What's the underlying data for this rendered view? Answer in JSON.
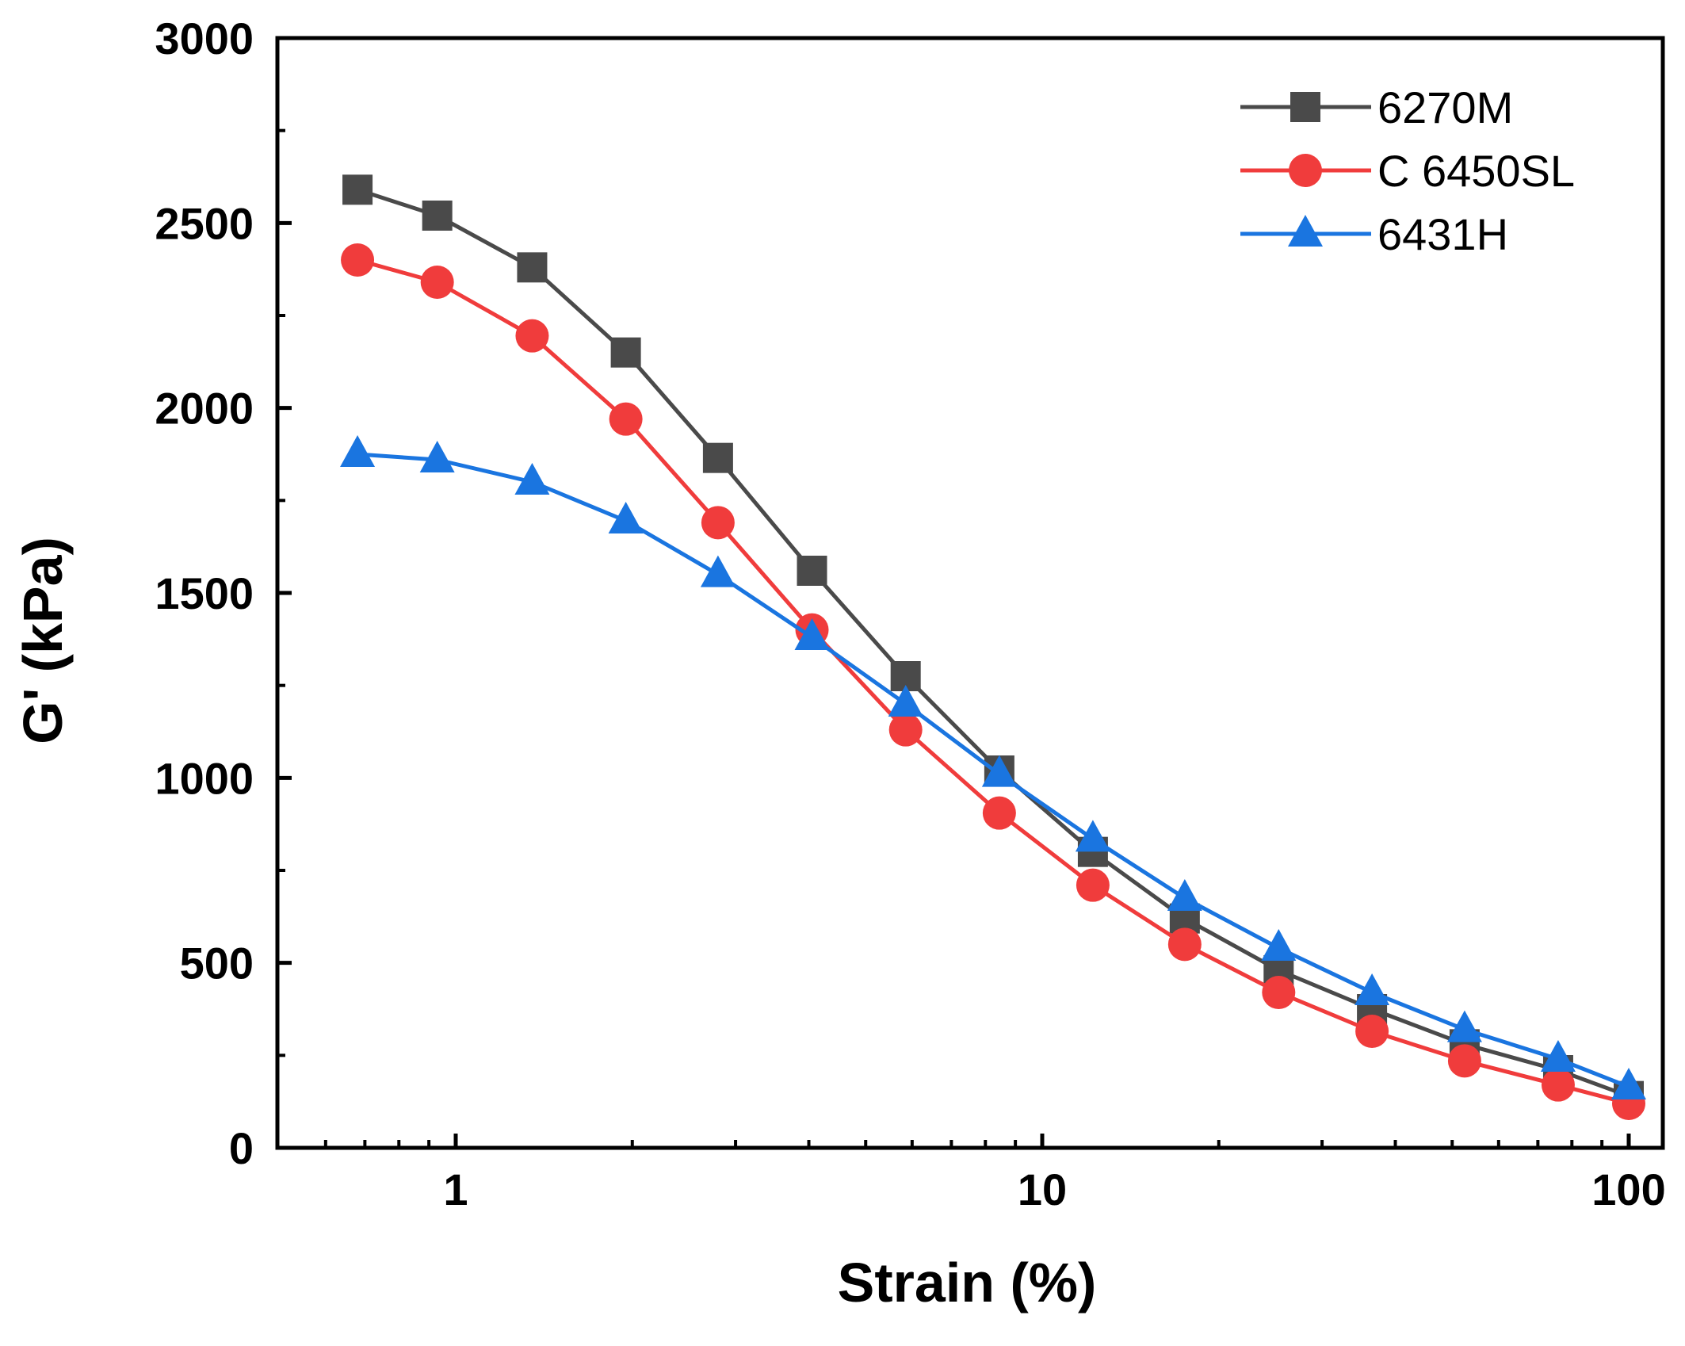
{
  "chart_data": {
    "type": "line",
    "xscale": "log",
    "xlabel": "Strain (%)",
    "ylabel": "G' (kPa)",
    "xlim": [
      0.5,
      100
    ],
    "ylim": [
      0,
      3000
    ],
    "xticks": [
      1,
      10,
      100
    ],
    "xtick_labels": [
      "1",
      "10",
      "100"
    ],
    "yticks": [
      0,
      500,
      1000,
      1500,
      2000,
      2500,
      3000
    ],
    "ytick_labels": [
      "0",
      "500",
      "1000",
      "1500",
      "2000",
      "2500",
      "3000"
    ],
    "legend_position": "top-right",
    "x": [
      0.68,
      0.93,
      1.35,
      1.95,
      2.8,
      4.05,
      5.85,
      8.45,
      12.2,
      17.5,
      25.3,
      36.5,
      52.5,
      75.8,
      100
    ],
    "series": [
      {
        "name": "6270M",
        "color": "#4a4a4a",
        "marker": "square",
        "values": [
          2590,
          2520,
          2380,
          2150,
          1865,
          1560,
          1275,
          1020,
          800,
          620,
          480,
          375,
          280,
          210,
          140
        ]
      },
      {
        "name": "C 6450SL",
        "color": "#f03c3c",
        "marker": "circle",
        "values": [
          2400,
          2340,
          2195,
          1970,
          1690,
          1400,
          1130,
          905,
          710,
          550,
          420,
          315,
          235,
          170,
          120
        ]
      },
      {
        "name": "6431H",
        "color": "#1a75e0",
        "marker": "triangle",
        "values": [
          1875,
          1860,
          1800,
          1695,
          1550,
          1380,
          1200,
          1010,
          835,
          675,
          540,
          420,
          320,
          240,
          165
        ]
      }
    ]
  }
}
